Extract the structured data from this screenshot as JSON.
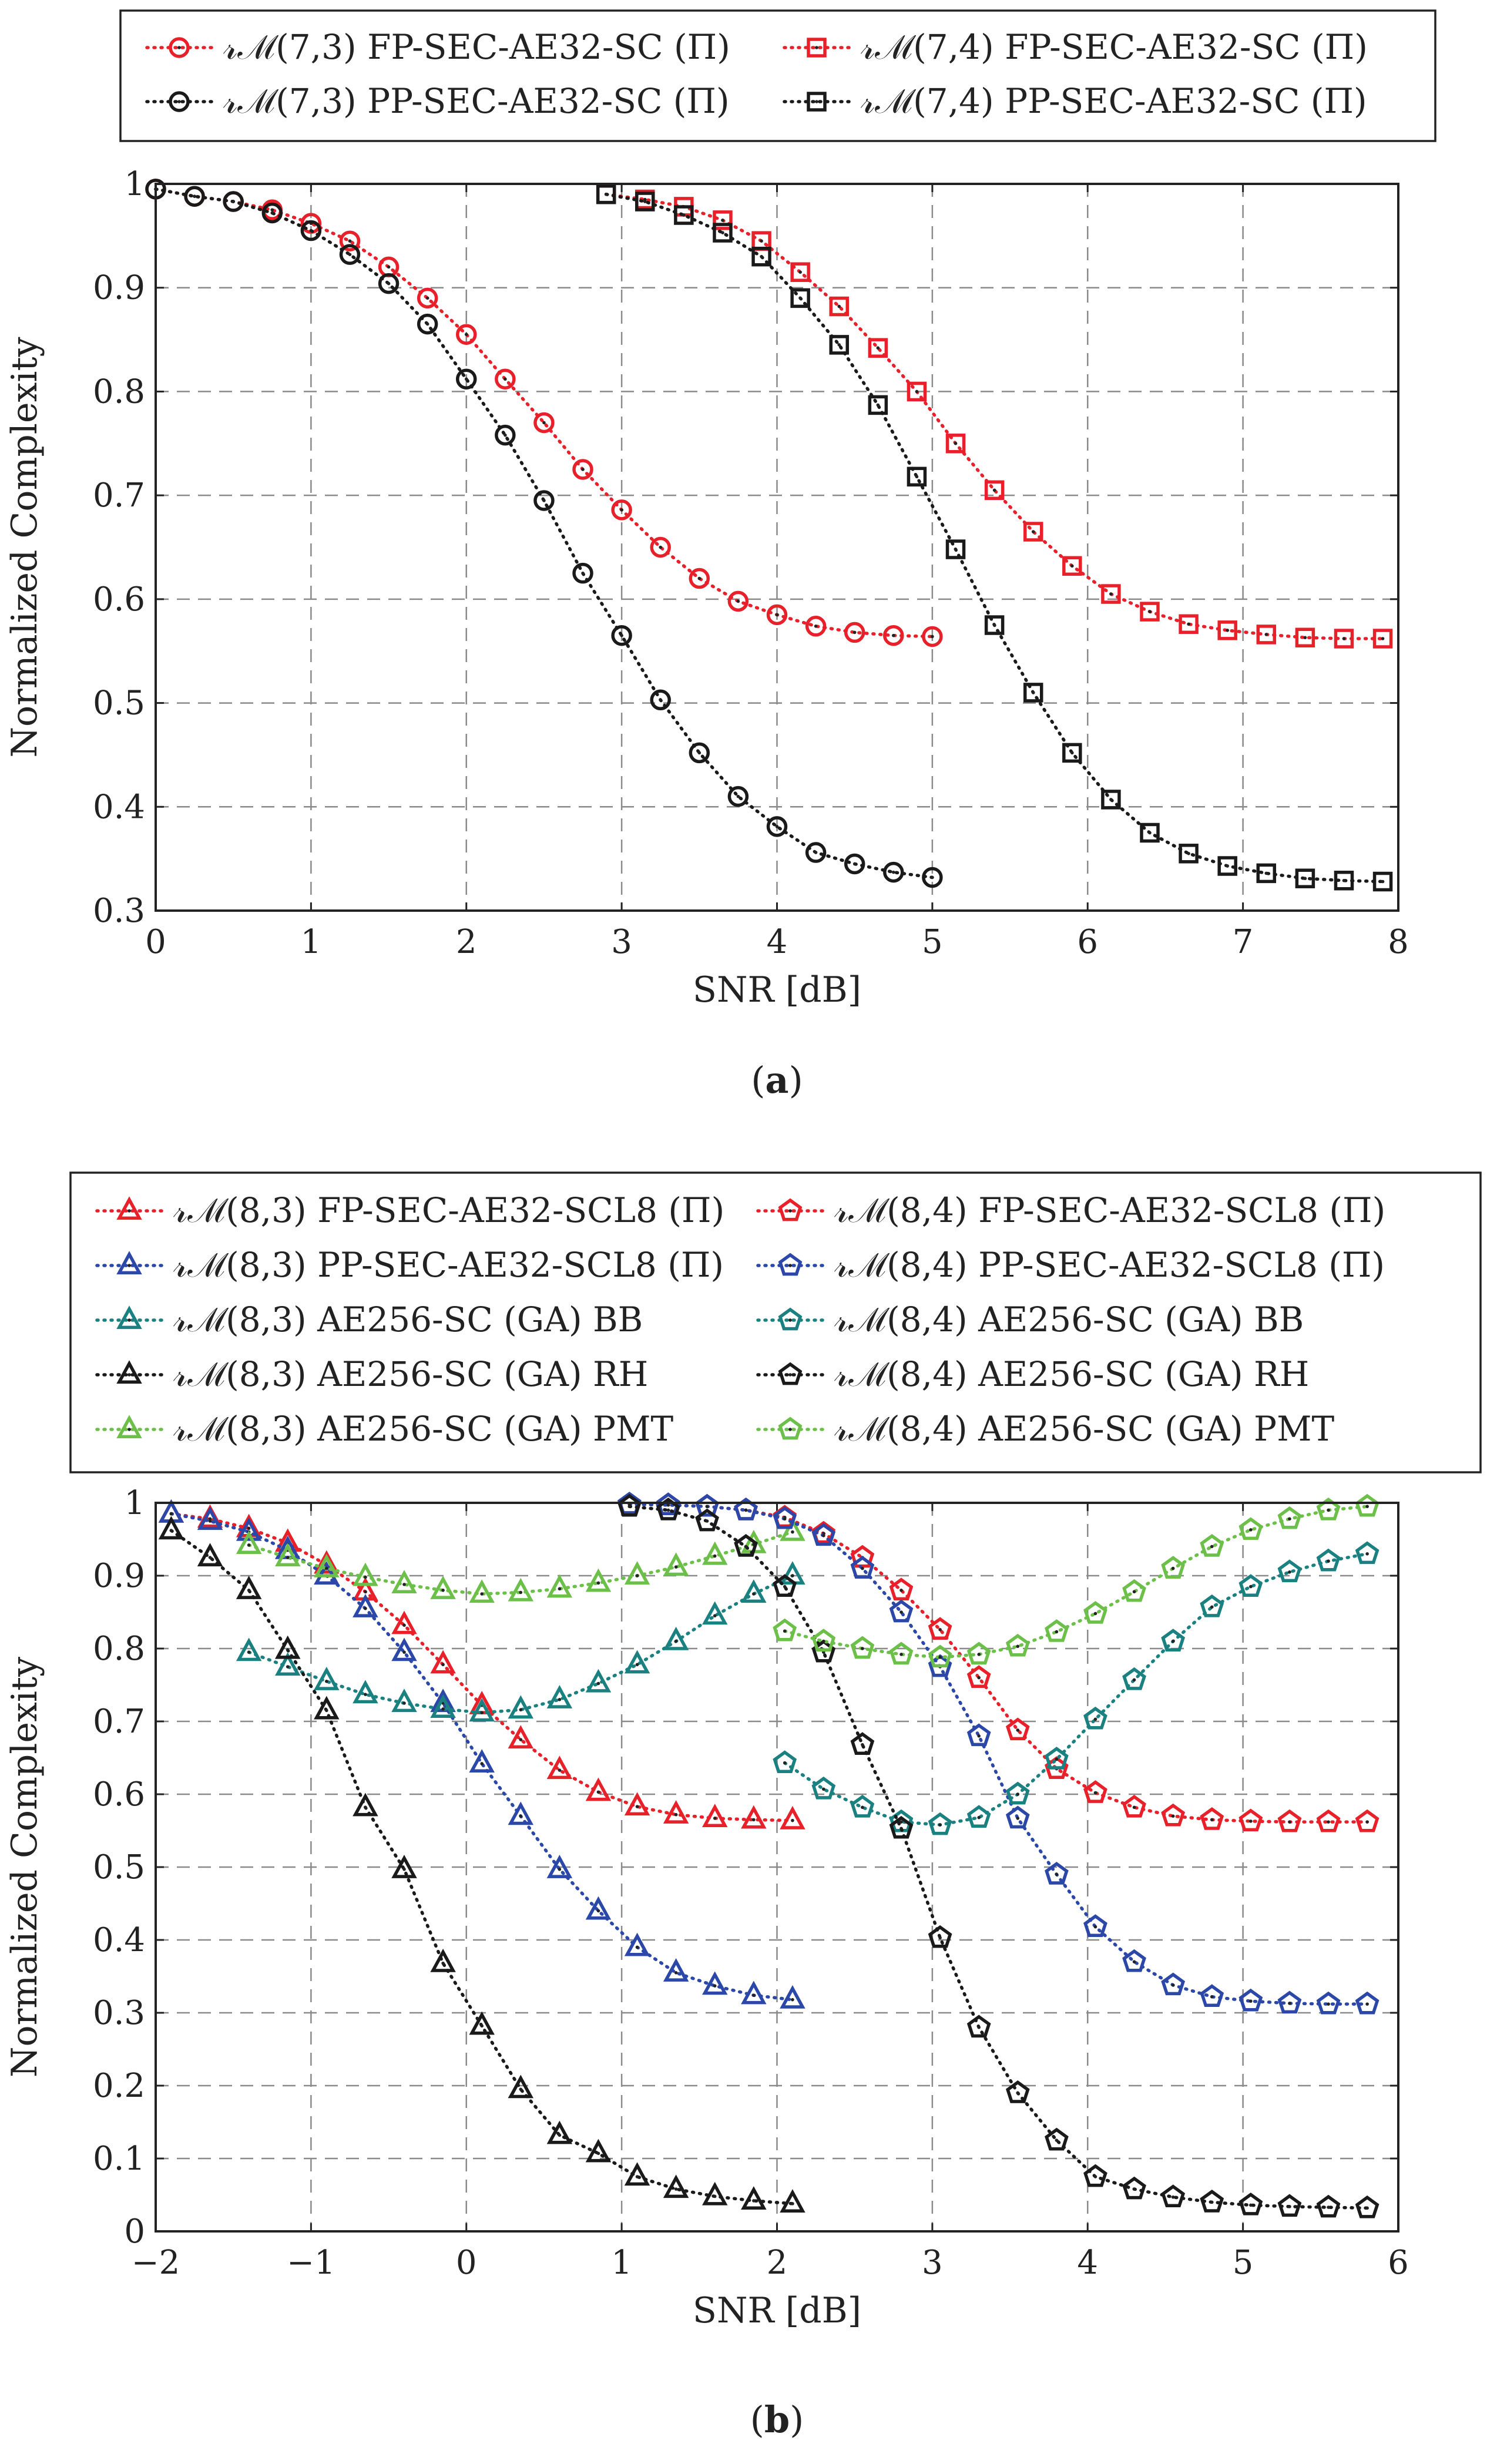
{
  "chart_data": [
    {
      "type": "line",
      "panel_caption": "a",
      "xlabel": "SNR [dB]",
      "ylabel": "Normalized Complexity",
      "xlim": [
        0,
        8
      ],
      "ylim": [
        0.3,
        1
      ],
      "xticks": [
        "0",
        "1",
        "2",
        "3",
        "4",
        "5",
        "6",
        "7",
        "8"
      ],
      "yticks": [
        "0.3",
        "0.4",
        "0.5",
        "0.6",
        "0.7",
        "0.8",
        "0.9",
        "1"
      ],
      "grid": true,
      "legend_position": "above",
      "series": [
        {
          "name": "𝓇ℳ(7,3) FP-SEC-AE32-SC (Π)",
          "color": "#e8202a",
          "marker": "circle",
          "x": [
            0,
            0.25,
            0.5,
            0.75,
            1.0,
            1.25,
            1.5,
            1.75,
            2.0,
            2.25,
            2.5,
            2.75,
            3.0,
            3.25,
            3.5,
            3.75,
            4.0,
            4.25,
            4.5,
            4.75,
            5.0
          ],
          "y": [
            0.995,
            0.988,
            0.983,
            0.975,
            0.962,
            0.945,
            0.92,
            0.89,
            0.855,
            0.812,
            0.77,
            0.725,
            0.686,
            0.65,
            0.62,
            0.598,
            0.585,
            0.574,
            0.568,
            0.565,
            0.564
          ]
        },
        {
          "name": "𝓇ℳ(7,3) PP-SEC-AE32-SC (Π)",
          "color": "#1a1a1a",
          "marker": "circle",
          "x": [
            0,
            0.25,
            0.5,
            0.75,
            1.0,
            1.25,
            1.5,
            1.75,
            2.0,
            2.25,
            2.5,
            2.75,
            3.0,
            3.25,
            3.5,
            3.75,
            4.0,
            4.25,
            4.5,
            4.75,
            5.0
          ],
          "y": [
            0.995,
            0.988,
            0.983,
            0.972,
            0.955,
            0.932,
            0.904,
            0.865,
            0.812,
            0.758,
            0.695,
            0.625,
            0.565,
            0.503,
            0.452,
            0.41,
            0.381,
            0.356,
            0.345,
            0.337,
            0.332
          ]
        },
        {
          "name": "𝓇ℳ(7,4) FP-SEC-AE32-SC (Π)",
          "color": "#e8202a",
          "marker": "square",
          "x": [
            2.9,
            3.15,
            3.4,
            3.65,
            3.9,
            4.15,
            4.4,
            4.65,
            4.9,
            5.15,
            5.4,
            5.65,
            5.9,
            6.15,
            6.4,
            6.65,
            6.9,
            7.15,
            7.4,
            7.65,
            7.9
          ],
          "y": [
            0.99,
            0.985,
            0.978,
            0.965,
            0.945,
            0.915,
            0.882,
            0.842,
            0.8,
            0.75,
            0.705,
            0.665,
            0.632,
            0.605,
            0.588,
            0.576,
            0.57,
            0.566,
            0.563,
            0.562,
            0.562
          ]
        },
        {
          "name": "𝓇ℳ(7,4) PP-SEC-AE32-SC (Π)",
          "color": "#1a1a1a",
          "marker": "square",
          "x": [
            2.9,
            3.15,
            3.4,
            3.65,
            3.9,
            4.15,
            4.4,
            4.65,
            4.9,
            5.15,
            5.4,
            5.65,
            5.9,
            6.15,
            6.4,
            6.65,
            6.9,
            7.15,
            7.4,
            7.65,
            7.9
          ],
          "y": [
            0.99,
            0.983,
            0.97,
            0.953,
            0.93,
            0.89,
            0.845,
            0.787,
            0.718,
            0.648,
            0.575,
            0.51,
            0.452,
            0.407,
            0.375,
            0.355,
            0.343,
            0.336,
            0.331,
            0.329,
            0.328
          ]
        }
      ]
    },
    {
      "type": "line",
      "panel_caption": "b",
      "xlabel": "SNR [dB]",
      "ylabel": "Normalized Complexity",
      "xlim": [
        -2,
        6
      ],
      "ylim": [
        0,
        1
      ],
      "xticks": [
        "−2",
        "−1",
        "0",
        "1",
        "2",
        "3",
        "4",
        "5",
        "6"
      ],
      "yticks": [
        "0",
        "0.1",
        "0.2",
        "0.3",
        "0.4",
        "0.5",
        "0.6",
        "0.7",
        "0.8",
        "0.9",
        "1"
      ],
      "grid": true,
      "legend_position": "above",
      "series": [
        {
          "name": "𝓇ℳ(8,3) FP-SEC-AE32-SCL8 (Π)",
          "color": "#e8202a",
          "marker": "triangle",
          "x": [
            -1.9,
            -1.65,
            -1.4,
            -1.15,
            -0.9,
            -0.65,
            -0.4,
            -0.15,
            0.1,
            0.35,
            0.6,
            0.85,
            1.1,
            1.35,
            1.6,
            1.85,
            2.1
          ],
          "y": [
            0.985,
            0.978,
            0.965,
            0.945,
            0.915,
            0.878,
            0.832,
            0.778,
            0.722,
            0.675,
            0.633,
            0.603,
            0.583,
            0.572,
            0.567,
            0.565,
            0.564
          ]
        },
        {
          "name": "𝓇ℳ(8,3) PP-SEC-AE32-SCL8 (Π)",
          "color": "#2b48a8",
          "marker": "triangle",
          "x": [
            -1.9,
            -1.65,
            -1.4,
            -1.15,
            -0.9,
            -0.65,
            -0.4,
            -0.15,
            0.1,
            0.35,
            0.6,
            0.85,
            1.1,
            1.35,
            1.6,
            1.85,
            2.1
          ],
          "y": [
            0.985,
            0.975,
            0.96,
            0.935,
            0.9,
            0.855,
            0.795,
            0.725,
            0.642,
            0.57,
            0.497,
            0.44,
            0.39,
            0.355,
            0.337,
            0.324,
            0.318
          ]
        },
        {
          "name": "𝓇ℳ(8,3) AE256-SC (GA) BB",
          "color": "#1a8080",
          "marker": "triangle",
          "x": [
            -1.4,
            -1.15,
            -0.9,
            -0.65,
            -0.4,
            -0.15,
            0.1,
            0.35,
            0.6,
            0.85,
            1.1,
            1.35,
            1.6,
            1.85,
            2.1
          ],
          "y": [
            0.795,
            0.775,
            0.755,
            0.737,
            0.725,
            0.717,
            0.712,
            0.716,
            0.73,
            0.752,
            0.778,
            0.81,
            0.845,
            0.875,
            0.9
          ]
        },
        {
          "name": "𝓇ℳ(8,3) AE256-SC (GA) RH",
          "color": "#1a1a1a",
          "marker": "triangle",
          "x": [
            -1.9,
            -1.65,
            -1.4,
            -1.15,
            -0.9,
            -0.65,
            -0.4,
            -0.15,
            0.1,
            0.35,
            0.6,
            0.85,
            1.1,
            1.35,
            1.6,
            1.85,
            2.1
          ],
          "y": [
            0.962,
            0.925,
            0.88,
            0.798,
            0.715,
            0.582,
            0.497,
            0.368,
            0.282,
            0.195,
            0.132,
            0.107,
            0.075,
            0.058,
            0.048,
            0.042,
            0.038
          ]
        },
        {
          "name": "𝓇ℳ(8,3) AE256-SC (GA) PMT",
          "color": "#6cc04a",
          "marker": "triangle",
          "x": [
            -1.4,
            -1.15,
            -0.9,
            -0.65,
            -0.4,
            -0.15,
            0.1,
            0.35,
            0.6,
            0.85,
            1.1,
            1.35,
            1.6,
            1.85,
            2.1
          ],
          "y": [
            0.942,
            0.925,
            0.91,
            0.898,
            0.888,
            0.88,
            0.875,
            0.877,
            0.882,
            0.89,
            0.9,
            0.912,
            0.927,
            0.943,
            0.96
          ]
        },
        {
          "name": "𝓇ℳ(8,4) FP-SEC-AE32-SCL8 (Π)",
          "color": "#e8202a",
          "marker": "pentagon",
          "x": [
            1.05,
            1.3,
            1.55,
            1.8,
            2.05,
            2.3,
            2.55,
            2.8,
            3.05,
            3.3,
            3.55,
            3.8,
            4.05,
            4.3,
            4.55,
            4.8,
            5.05,
            5.3,
            5.55,
            5.8
          ],
          "y": [
            0.998,
            0.997,
            0.995,
            0.99,
            0.98,
            0.958,
            0.925,
            0.88,
            0.826,
            0.76,
            0.688,
            0.635,
            0.602,
            0.582,
            0.57,
            0.565,
            0.563,
            0.562,
            0.562,
            0.562
          ]
        },
        {
          "name": "𝓇ℳ(8,4) PP-SEC-AE32-SCL8 (Π)",
          "color": "#2b48a8",
          "marker": "pentagon",
          "x": [
            1.05,
            1.3,
            1.55,
            1.8,
            2.05,
            2.3,
            2.55,
            2.8,
            3.05,
            3.3,
            3.55,
            3.8,
            4.05,
            4.3,
            4.55,
            4.8,
            5.05,
            5.3,
            5.55,
            5.8
          ],
          "y": [
            0.998,
            0.997,
            0.995,
            0.99,
            0.978,
            0.955,
            0.91,
            0.85,
            0.775,
            0.68,
            0.567,
            0.49,
            0.418,
            0.37,
            0.338,
            0.322,
            0.316,
            0.313,
            0.312,
            0.312
          ]
        },
        {
          "name": "𝓇ℳ(8,4) AE256-SC (GA) BB",
          "color": "#1a8080",
          "marker": "pentagon",
          "x": [
            2.05,
            2.3,
            2.55,
            2.8,
            3.05,
            3.3,
            3.55,
            3.8,
            4.05,
            4.3,
            4.55,
            4.8,
            5.05,
            5.3,
            5.55,
            5.8
          ],
          "y": [
            0.643,
            0.607,
            0.582,
            0.562,
            0.558,
            0.568,
            0.6,
            0.648,
            0.703,
            0.757,
            0.81,
            0.857,
            0.885,
            0.905,
            0.92,
            0.93
          ]
        },
        {
          "name": "𝓇ℳ(8,4) AE256-SC (GA) RH",
          "color": "#1a1a1a",
          "marker": "pentagon",
          "x": [
            1.05,
            1.3,
            1.55,
            1.8,
            2.05,
            2.3,
            2.55,
            2.8,
            3.05,
            3.3,
            3.55,
            3.8,
            4.05,
            4.3,
            4.55,
            4.8,
            5.05,
            5.3,
            5.55,
            5.8
          ],
          "y": [
            0.995,
            0.99,
            0.975,
            0.94,
            0.885,
            0.795,
            0.668,
            0.553,
            0.403,
            0.28,
            0.19,
            0.125,
            0.075,
            0.058,
            0.047,
            0.04,
            0.036,
            0.034,
            0.033,
            0.032
          ]
        },
        {
          "name": "𝓇ℳ(8,4) AE256-SC (GA) PMT",
          "color": "#6cc04a",
          "marker": "pentagon",
          "x": [
            2.05,
            2.3,
            2.55,
            2.8,
            3.05,
            3.3,
            3.55,
            3.8,
            4.05,
            4.3,
            4.55,
            4.8,
            5.05,
            5.3,
            5.55,
            5.8
          ],
          "y": [
            0.824,
            0.81,
            0.8,
            0.792,
            0.788,
            0.792,
            0.803,
            0.823,
            0.848,
            0.878,
            0.91,
            0.94,
            0.963,
            0.978,
            0.99,
            0.995
          ]
        }
      ]
    }
  ]
}
